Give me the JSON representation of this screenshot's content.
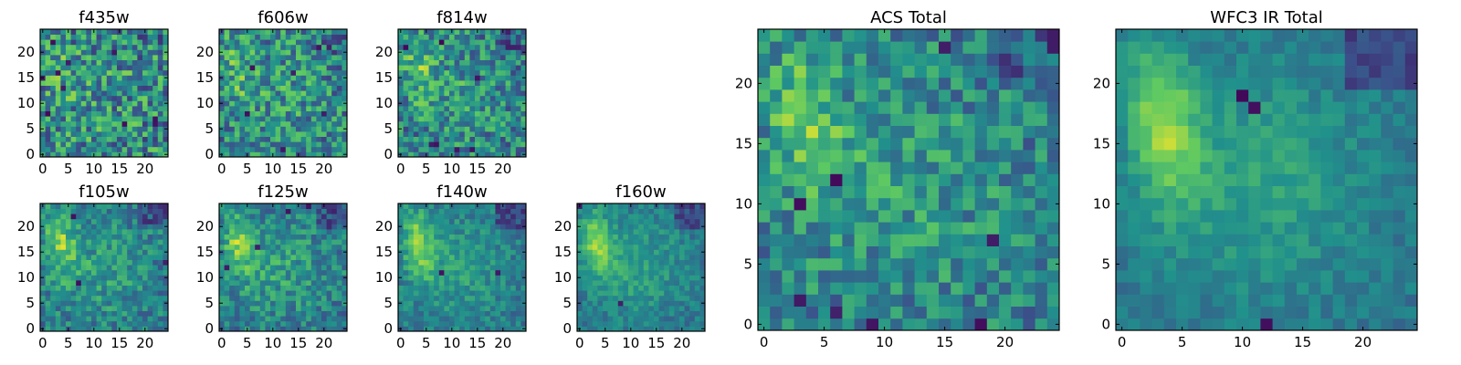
{
  "figure": {
    "colormap": "viridis",
    "colormap_stops": [
      "#440154",
      "#3b528b",
      "#21918c",
      "#5ec962",
      "#fde725"
    ]
  },
  "chart_data": [
    {
      "id": "f435w",
      "type": "heatmap",
      "title": "f435w",
      "grid_size": 25,
      "xlim": [
        0,
        24
      ],
      "ylim": [
        0,
        24
      ],
      "x_ticks": [
        0,
        5,
        10,
        15,
        20
      ],
      "y_ticks": [
        0,
        5,
        10,
        15,
        20
      ],
      "noise": 0.38,
      "blob_strength": 0.18,
      "dark_spots": 10
    },
    {
      "id": "f606w",
      "type": "heatmap",
      "title": "f606w",
      "grid_size": 25,
      "xlim": [
        0,
        24
      ],
      "ylim": [
        0,
        24
      ],
      "x_ticks": [
        0,
        5,
        10,
        15,
        20
      ],
      "y_ticks": [
        0,
        5,
        10,
        15,
        20
      ],
      "noise": 0.34,
      "blob_strength": 0.35,
      "dark_spots": 6
    },
    {
      "id": "f814w",
      "type": "heatmap",
      "title": "f814w",
      "grid_size": 25,
      "xlim": [
        0,
        24
      ],
      "ylim": [
        0,
        24
      ],
      "x_ticks": [
        0,
        5,
        10,
        15,
        20
      ],
      "y_ticks": [
        0,
        5,
        10,
        15,
        20
      ],
      "noise": 0.32,
      "blob_strength": 0.45,
      "dark_spots": 7
    },
    {
      "id": "f105w",
      "type": "heatmap",
      "title": "f105w",
      "grid_size": 25,
      "xlim": [
        0,
        24
      ],
      "ylim": [
        0,
        24
      ],
      "x_ticks": [
        0,
        5,
        10,
        15,
        20
      ],
      "y_ticks": [
        0,
        5,
        10,
        15,
        20
      ],
      "noise": 0.22,
      "blob_strength": 0.6,
      "dark_spots": 3
    },
    {
      "id": "f125w",
      "type": "heatmap",
      "title": "f125w",
      "grid_size": 25,
      "xlim": [
        0,
        24
      ],
      "ylim": [
        0,
        24
      ],
      "x_ticks": [
        0,
        5,
        10,
        15,
        20
      ],
      "y_ticks": [
        0,
        5,
        10,
        15,
        20
      ],
      "noise": 0.22,
      "blob_strength": 0.62,
      "dark_spots": 4
    },
    {
      "id": "f140w",
      "type": "heatmap",
      "title": "f140w",
      "grid_size": 25,
      "xlim": [
        0,
        24
      ],
      "ylim": [
        0,
        24
      ],
      "x_ticks": [
        0,
        5,
        10,
        15,
        20
      ],
      "y_ticks": [
        0,
        5,
        10,
        15,
        20
      ],
      "noise": 0.16,
      "blob_strength": 0.68,
      "dark_spots": 2
    },
    {
      "id": "f160w",
      "type": "heatmap",
      "title": "f160w",
      "grid_size": 25,
      "xlim": [
        0,
        24
      ],
      "ylim": [
        0,
        24
      ],
      "x_ticks": [
        0,
        5,
        10,
        15,
        20
      ],
      "y_ticks": [
        0,
        5,
        10,
        15,
        20
      ],
      "noise": 0.14,
      "blob_strength": 0.72,
      "dark_spots": 2
    },
    {
      "id": "acs_total",
      "type": "heatmap",
      "title": "ACS Total",
      "grid_size": 25,
      "xlim": [
        0,
        24
      ],
      "ylim": [
        0,
        24
      ],
      "x_ticks": [
        0,
        5,
        10,
        15,
        20
      ],
      "y_ticks": [
        0,
        5,
        10,
        15,
        20
      ],
      "noise": 0.26,
      "blob_strength": 0.55,
      "dark_spots": 9
    },
    {
      "id": "wfc3_ir_total",
      "type": "heatmap",
      "title": "WFC3 IR Total",
      "grid_size": 25,
      "xlim": [
        0,
        24
      ],
      "ylim": [
        0,
        24
      ],
      "x_ticks": [
        0,
        5,
        10,
        15,
        20
      ],
      "y_ticks": [
        0,
        5,
        10,
        15,
        20
      ],
      "noise": 0.1,
      "blob_strength": 0.75,
      "dark_spots": 3
    }
  ]
}
